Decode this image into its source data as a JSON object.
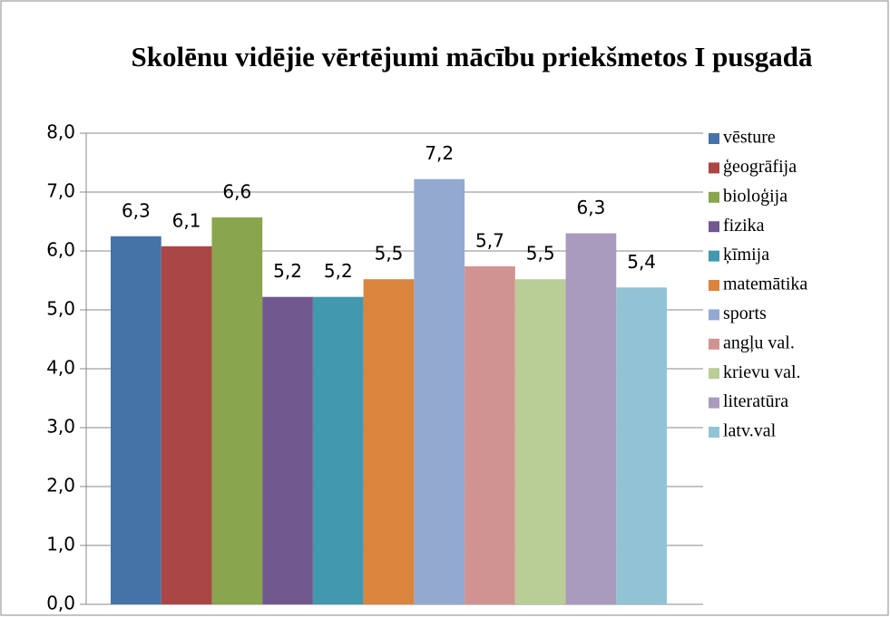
{
  "chart_data": {
    "type": "bar",
    "title": "Skolēnu vidējie vērtējumi mācību priekšmetos I pusgadā",
    "categories": [
      null
    ],
    "series": [
      {
        "name": "vēsture",
        "color": "#4572a7",
        "values": [
          6.25
        ],
        "value_labels": [
          "6,3"
        ]
      },
      {
        "name": "ģeogrāfija",
        "color": "#aa4643",
        "values": [
          6.08
        ],
        "value_labels": [
          "6,1"
        ]
      },
      {
        "name": "bioloģija",
        "color": "#89a54e",
        "values": [
          6.57
        ],
        "value_labels": [
          "6,6"
        ]
      },
      {
        "name": "fizika",
        "color": "#71588f",
        "values": [
          5.22
        ],
        "value_labels": [
          "5,2"
        ]
      },
      {
        "name": "ķīmija",
        "color": "#4198af",
        "values": [
          5.22
        ],
        "value_labels": [
          "5,2"
        ]
      },
      {
        "name": "matemātika",
        "color": "#db843d",
        "values": [
          5.52
        ],
        "value_labels": [
          "5,5"
        ]
      },
      {
        "name": "sports",
        "color": "#93a9cf",
        "values": [
          7.22
        ],
        "value_labels": [
          "7,2"
        ]
      },
      {
        "name": "angļu val.",
        "color": "#d19392",
        "values": [
          5.74
        ],
        "value_labels": [
          "5,7"
        ]
      },
      {
        "name": "krievu val.",
        "color": "#b9cd96",
        "values": [
          5.52
        ],
        "value_labels": [
          "5,5"
        ]
      },
      {
        "name": "literatūra",
        "color": "#a99bbd",
        "values": [
          6.3
        ],
        "value_labels": [
          "6,3"
        ]
      },
      {
        "name": "latv.val",
        "color": "#91c3d5",
        "values": [
          5.38
        ],
        "value_labels": [
          "5,4"
        ]
      }
    ],
    "ylim": [
      0,
      8
    ],
    "yticks": [
      {
        "value": 0,
        "label": "0,0"
      },
      {
        "value": 1,
        "label": "1,0"
      },
      {
        "value": 2,
        "label": "2,0"
      },
      {
        "value": 3,
        "label": "3,0"
      },
      {
        "value": 4,
        "label": "4,0"
      },
      {
        "value": 5,
        "label": "5,0"
      },
      {
        "value": 6,
        "label": "6,0"
      },
      {
        "value": 7,
        "label": "7,0"
      },
      {
        "value": 8,
        "label": "8,0"
      }
    ],
    "grid": true,
    "legend": "right"
  }
}
